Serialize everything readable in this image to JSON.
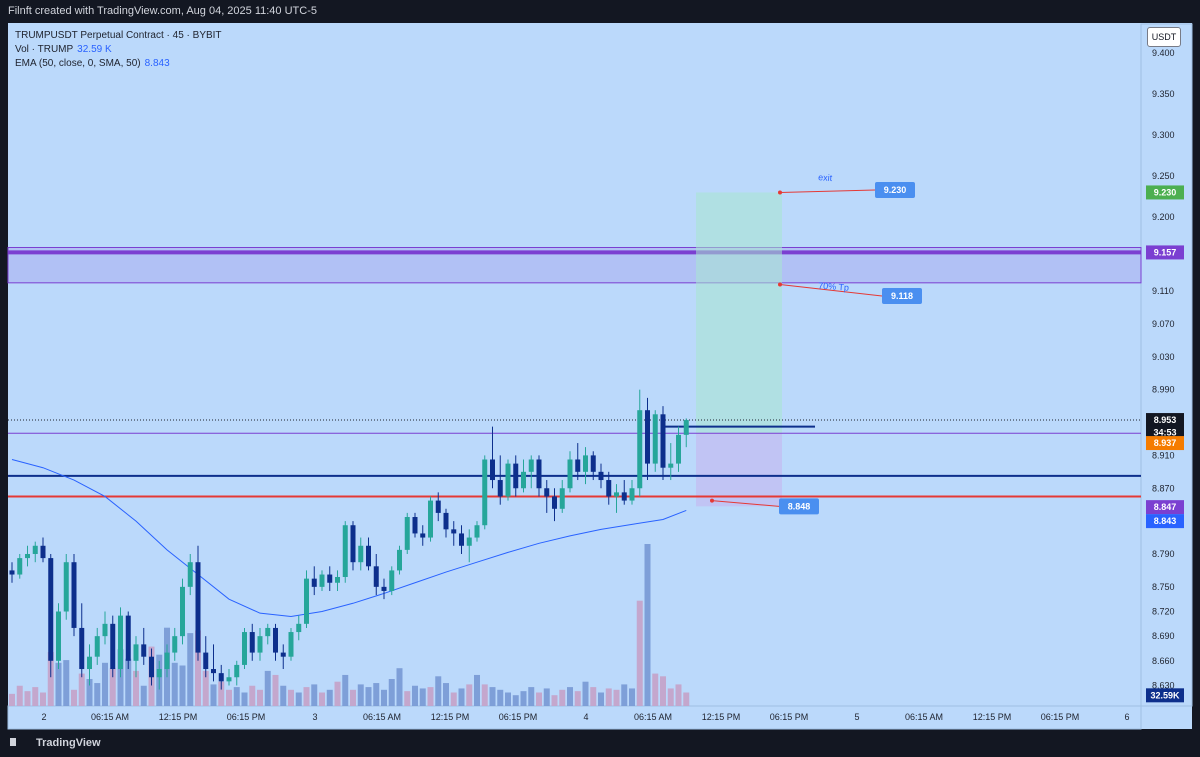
{
  "header": {
    "title": "Filnft created with TradingView.com, Aug 04, 2025 11:40 UTC-5"
  },
  "legend": {
    "symbol": "TRUMPUSDT Perpetual Contract · 45 · BYBIT",
    "vol_label": "Vol · TRUMP",
    "vol_value": "32.59 K",
    "ema_label": "EMA (50, close, 0, SMA, 50)",
    "ema_value": "8.843"
  },
  "currency": "USDT",
  "footer": {
    "logo": "TradingView"
  },
  "colors": {
    "bg": "#bbd9fb",
    "bull": "#26a69a",
    "bear": "#0d2f8c",
    "ema": "#2962ff",
    "zone": "#7b3fd1",
    "red_line": "#e53935"
  },
  "chart_data": {
    "type": "candlestick",
    "title": "TRUMPUSDT Perpetual Contract · 45 · BYBIT",
    "ylim": [
      8.605,
      9.435
    ],
    "y_ticks": [
      "9.400",
      "9.350",
      "9.300",
      "9.250",
      "9.200",
      "9.110",
      "9.070",
      "9.030",
      "8.990",
      "8.910",
      "8.870",
      "8.790",
      "8.750",
      "8.720",
      "8.690",
      "8.660",
      "8.630"
    ],
    "x_ticks": [
      "2",
      "06:15 AM",
      "12:15 PM",
      "06:15 PM",
      "3",
      "06:15 AM",
      "12:15 PM",
      "06:15 PM",
      "4",
      "06:15 AM",
      "12:15 PM",
      "06:15 PM",
      "5",
      "06:15 AM",
      "12:15 PM",
      "06:15 PM",
      "6"
    ],
    "price_tags": [
      {
        "label": "9.230",
        "value": 9.23,
        "color": "#4caf50"
      },
      {
        "label": "9.157",
        "value": 9.157,
        "color": "#7b3fd1"
      },
      {
        "label": "8.953",
        "value": 8.953,
        "color": "#131722"
      },
      {
        "label": "34:53",
        "value": 8.938,
        "color": "#131722"
      },
      {
        "label": "8.937",
        "value": 8.925,
        "color": "#f57c00"
      },
      {
        "label": "8.847",
        "value": 8.847,
        "color": "#7b3fd1"
      },
      {
        "label": "8.843",
        "value": 8.83,
        "color": "#2962ff"
      },
      {
        "label": "32.59K",
        "value": 8.618,
        "color": "#0d2f8c"
      }
    ],
    "levels": [
      {
        "name": "zone-top",
        "value": 9.163
      },
      {
        "name": "zone-mid",
        "value": 9.157
      },
      {
        "name": "zone-bottom",
        "value": 9.12
      },
      {
        "name": "last-price-dotted",
        "value": 8.953
      },
      {
        "name": "purple-line",
        "value": 8.937
      },
      {
        "name": "navy-line",
        "value": 8.885
      },
      {
        "name": "red-line",
        "value": 8.86
      }
    ],
    "position": {
      "entry": 8.937,
      "target": 9.23,
      "stop": 8.848
    },
    "annotations": [
      {
        "text": "exit",
        "label": "9.230",
        "value": 9.23
      },
      {
        "text": "70% Tp",
        "label": "9.118",
        "value": 9.118
      },
      {
        "text": "",
        "label": "8.848",
        "value": 8.848
      }
    ],
    "ema_value": 8.843,
    "candles": [
      [
        8.77,
        8.78,
        8.755,
        8.765
      ],
      [
        8.765,
        8.79,
        8.76,
        8.785
      ],
      [
        8.785,
        8.8,
        8.775,
        8.79
      ],
      [
        8.79,
        8.805,
        8.78,
        8.8
      ],
      [
        8.8,
        8.81,
        8.78,
        8.785
      ],
      [
        8.785,
        8.79,
        8.64,
        8.66
      ],
      [
        8.66,
        8.73,
        8.65,
        8.72
      ],
      [
        8.72,
        8.79,
        8.71,
        8.78
      ],
      [
        8.78,
        8.79,
        8.69,
        8.7
      ],
      [
        8.7,
        8.73,
        8.64,
        8.65
      ],
      [
        8.65,
        8.68,
        8.63,
        8.665
      ],
      [
        8.665,
        8.7,
        8.655,
        8.69
      ],
      [
        8.69,
        8.72,
        8.68,
        8.705
      ],
      [
        8.705,
        8.715,
        8.64,
        8.65
      ],
      [
        8.65,
        8.725,
        8.64,
        8.715
      ],
      [
        8.715,
        8.72,
        8.65,
        8.66
      ],
      [
        8.66,
        8.69,
        8.64,
        8.68
      ],
      [
        8.68,
        8.7,
        8.655,
        8.665
      ],
      [
        8.665,
        8.675,
        8.63,
        8.64
      ],
      [
        8.64,
        8.66,
        8.625,
        8.65
      ],
      [
        8.65,
        8.68,
        8.64,
        8.67
      ],
      [
        8.67,
        8.7,
        8.66,
        8.69
      ],
      [
        8.69,
        8.76,
        8.68,
        8.75
      ],
      [
        8.75,
        8.79,
        8.74,
        8.78
      ],
      [
        8.78,
        8.8,
        8.66,
        8.67
      ],
      [
        8.67,
        8.69,
        8.64,
        8.65
      ],
      [
        8.65,
        8.68,
        8.635,
        8.645
      ],
      [
        8.645,
        8.655,
        8.625,
        8.635
      ],
      [
        8.635,
        8.65,
        8.63,
        8.64
      ],
      [
        8.64,
        8.66,
        8.63,
        8.655
      ],
      [
        8.655,
        8.7,
        8.65,
        8.695
      ],
      [
        8.695,
        8.705,
        8.66,
        8.67
      ],
      [
        8.67,
        8.7,
        8.66,
        8.69
      ],
      [
        8.69,
        8.705,
        8.68,
        8.7
      ],
      [
        8.7,
        8.705,
        8.66,
        8.67
      ],
      [
        8.67,
        8.68,
        8.65,
        8.665
      ],
      [
        8.665,
        8.7,
        8.66,
        8.695
      ],
      [
        8.695,
        8.715,
        8.685,
        8.705
      ],
      [
        8.705,
        8.77,
        8.7,
        8.76
      ],
      [
        8.76,
        8.775,
        8.74,
        8.75
      ],
      [
        8.75,
        8.77,
        8.745,
        8.765
      ],
      [
        8.765,
        8.775,
        8.745,
        8.755
      ],
      [
        8.755,
        8.77,
        8.745,
        8.762
      ],
      [
        8.762,
        8.83,
        8.755,
        8.825
      ],
      [
        8.825,
        8.83,
        8.77,
        8.78
      ],
      [
        8.78,
        8.81,
        8.77,
        8.8
      ],
      [
        8.8,
        8.81,
        8.77,
        8.775
      ],
      [
        8.775,
        8.79,
        8.74,
        8.75
      ],
      [
        8.75,
        8.76,
        8.735,
        8.745
      ],
      [
        8.745,
        8.775,
        8.74,
        8.77
      ],
      [
        8.77,
        8.8,
        8.765,
        8.795
      ],
      [
        8.795,
        8.84,
        8.79,
        8.835
      ],
      [
        8.835,
        8.84,
        8.81,
        8.815
      ],
      [
        8.815,
        8.825,
        8.8,
        8.81
      ],
      [
        8.81,
        8.86,
        8.805,
        8.855
      ],
      [
        8.855,
        8.865,
        8.83,
        8.84
      ],
      [
        8.84,
        8.845,
        8.81,
        8.82
      ],
      [
        8.82,
        8.83,
        8.8,
        8.815
      ],
      [
        8.815,
        8.825,
        8.79,
        8.8
      ],
      [
        8.8,
        8.82,
        8.78,
        8.81
      ],
      [
        8.81,
        8.83,
        8.805,
        8.825
      ],
      [
        8.825,
        8.91,
        8.82,
        8.905
      ],
      [
        8.905,
        8.945,
        8.87,
        8.88
      ],
      [
        8.88,
        8.91,
        8.85,
        8.86
      ],
      [
        8.86,
        8.905,
        8.855,
        8.9
      ],
      [
        8.9,
        8.91,
        8.86,
        8.87
      ],
      [
        8.87,
        8.905,
        8.865,
        8.89
      ],
      [
        8.89,
        8.91,
        8.87,
        8.905
      ],
      [
        8.905,
        8.91,
        8.86,
        8.87
      ],
      [
        8.87,
        8.88,
        8.84,
        8.86
      ],
      [
        8.86,
        8.87,
        8.83,
        8.845
      ],
      [
        8.845,
        8.88,
        8.84,
        8.87
      ],
      [
        8.87,
        8.915,
        8.865,
        8.905
      ],
      [
        8.905,
        8.925,
        8.88,
        8.89
      ],
      [
        8.89,
        8.92,
        8.875,
        8.91
      ],
      [
        8.91,
        8.915,
        8.88,
        8.89
      ],
      [
        8.89,
        8.9,
        8.87,
        8.88
      ],
      [
        8.88,
        8.89,
        8.85,
        8.86
      ],
      [
        8.86,
        8.875,
        8.84,
        8.865
      ],
      [
        8.865,
        8.88,
        8.85,
        8.855
      ],
      [
        8.855,
        8.88,
        8.85,
        8.87
      ],
      [
        8.87,
        8.99,
        8.86,
        8.965
      ],
      [
        8.965,
        8.98,
        8.88,
        8.9
      ],
      [
        8.9,
        8.965,
        8.89,
        8.96
      ],
      [
        8.96,
        8.97,
        8.88,
        8.895
      ],
      [
        8.895,
        8.925,
        8.88,
        8.9
      ],
      [
        8.9,
        8.945,
        8.89,
        8.935
      ],
      [
        8.935,
        8.955,
        8.92,
        8.953
      ]
    ],
    "volumes": [
      [
        9,
        0
      ],
      [
        15,
        0
      ],
      [
        11,
        0
      ],
      [
        14,
        0
      ],
      [
        10,
        0
      ],
      [
        40,
        0
      ],
      [
        32,
        1
      ],
      [
        34,
        1
      ],
      [
        12,
        0
      ],
      [
        24,
        0
      ],
      [
        20,
        1
      ],
      [
        17,
        1
      ],
      [
        32,
        1
      ],
      [
        28,
        0
      ],
      [
        42,
        1
      ],
      [
        35,
        1
      ],
      [
        26,
        0
      ],
      [
        15,
        1
      ],
      [
        44,
        0
      ],
      [
        38,
        1
      ],
      [
        58,
        1
      ],
      [
        32,
        1
      ],
      [
        30,
        1
      ],
      [
        54,
        1
      ],
      [
        56,
        0
      ],
      [
        26,
        0
      ],
      [
        16,
        1
      ],
      [
        18,
        0
      ],
      [
        12,
        0
      ],
      [
        14,
        1
      ],
      [
        10,
        1
      ],
      [
        15,
        0
      ],
      [
        12,
        0
      ],
      [
        26,
        1
      ],
      [
        23,
        0
      ],
      [
        15,
        1
      ],
      [
        12,
        0
      ],
      [
        10,
        1
      ],
      [
        14,
        0
      ],
      [
        16,
        1
      ],
      [
        10,
        0
      ],
      [
        12,
        1
      ],
      [
        18,
        0
      ],
      [
        23,
        1
      ],
      [
        12,
        0
      ],
      [
        16,
        1
      ],
      [
        14,
        1
      ],
      [
        17,
        1
      ],
      [
        12,
        1
      ],
      [
        20,
        1
      ],
      [
        28,
        1
      ],
      [
        11,
        0
      ],
      [
        15,
        1
      ],
      [
        13,
        1
      ],
      [
        14,
        0
      ],
      [
        22,
        1
      ],
      [
        17,
        1
      ],
      [
        10,
        0
      ],
      [
        13,
        1
      ],
      [
        16,
        0
      ],
      [
        23,
        1
      ],
      [
        16,
        0
      ],
      [
        14,
        1
      ],
      [
        12,
        1
      ],
      [
        10,
        1
      ],
      [
        8,
        1
      ],
      [
        11,
        1
      ],
      [
        14,
        1
      ],
      [
        10,
        0
      ],
      [
        13,
        1
      ],
      [
        8,
        0
      ],
      [
        12,
        0
      ],
      [
        14,
        1
      ],
      [
        11,
        0
      ],
      [
        18,
        1
      ],
      [
        14,
        0
      ],
      [
        10,
        1
      ],
      [
        13,
        0
      ],
      [
        12,
        0
      ],
      [
        16,
        1
      ],
      [
        13,
        1
      ],
      [
        78,
        0
      ],
      [
        120,
        1
      ],
      [
        24,
        0
      ],
      [
        22,
        0
      ],
      [
        13,
        0
      ],
      [
        16,
        0
      ],
      [
        10,
        0
      ]
    ],
    "ema": [
      [
        0,
        8.905
      ],
      [
        4,
        8.895
      ],
      [
        8,
        8.88
      ],
      [
        12,
        8.86
      ],
      [
        16,
        8.83
      ],
      [
        20,
        8.795
      ],
      [
        24,
        8.765
      ],
      [
        28,
        8.735
      ],
      [
        32,
        8.718
      ],
      [
        36,
        8.714
      ],
      [
        40,
        8.72
      ],
      [
        44,
        8.73
      ],
      [
        48,
        8.742
      ],
      [
        52,
        8.755
      ],
      [
        56,
        8.768
      ],
      [
        60,
        8.78
      ],
      [
        64,
        8.792
      ],
      [
        68,
        8.803
      ],
      [
        72,
        8.812
      ],
      [
        76,
        8.82
      ],
      [
        80,
        8.826
      ],
      [
        84,
        8.832
      ],
      [
        87,
        8.843
      ]
    ]
  }
}
